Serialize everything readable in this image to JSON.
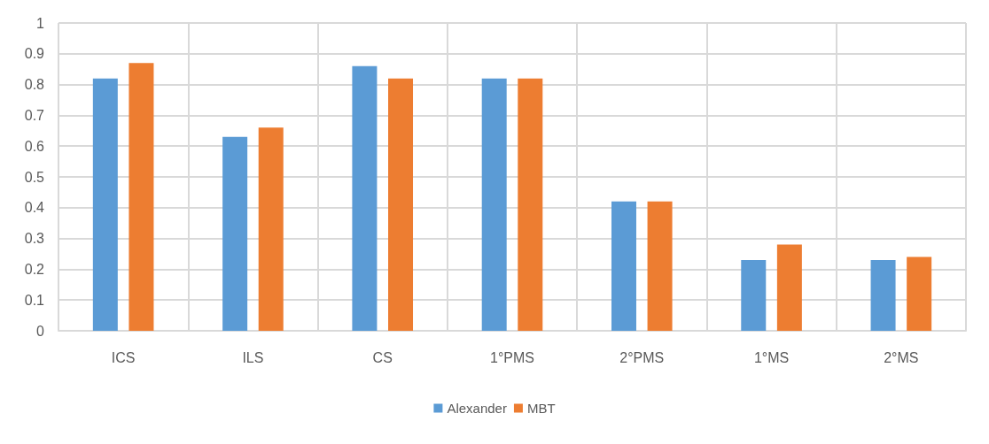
{
  "chart_data": {
    "type": "bar",
    "categories": [
      "ICS",
      "ILS",
      "CS",
      "1°PMS",
      "2°PMS",
      "1°MS",
      "2°MS"
    ],
    "series": [
      {
        "name": "Alexander",
        "color": "#5b9bd5",
        "values": [
          0.82,
          0.63,
          0.86,
          0.82,
          0.42,
          0.23,
          0.23
        ]
      },
      {
        "name": "MBT",
        "color": "#ed7d31",
        "values": [
          0.87,
          0.66,
          0.82,
          0.82,
          0.42,
          0.28,
          0.24
        ]
      }
    ],
    "ylim": [
      0,
      1
    ],
    "yticks": [
      0,
      0.1,
      0.2,
      0.3,
      0.4,
      0.5,
      0.6,
      0.7,
      0.8,
      0.9,
      1
    ],
    "grid": true,
    "legend": "bottom"
  }
}
